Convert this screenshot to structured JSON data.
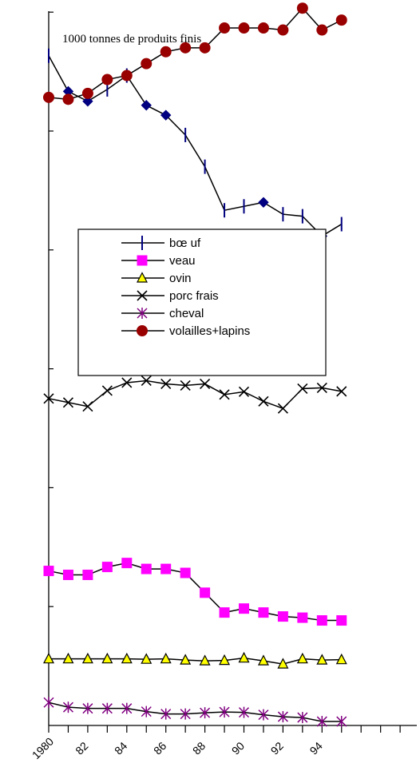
{
  "chart_data": {
    "type": "line",
    "title": "1000 tonnes de produits finis",
    "xlabel": "",
    "ylabel": "",
    "x": [
      1980,
      1981,
      1982,
      1983,
      1984,
      1985,
      1986,
      1987,
      1988,
      1989,
      1990,
      1991,
      1992,
      1993,
      1994,
      1995,
      1996
    ],
    "x_tick_labels": [
      "1980",
      "82",
      "84",
      "86",
      "88",
      "90",
      "92",
      "94"
    ],
    "y_tick_labels": [],
    "ylim": [
      0,
      1800
    ],
    "grid": false,
    "legend_position": "center",
    "series": [
      {
        "name": "bœ uf",
        "marker": "bar",
        "color": "#000080",
        "values": [
          1690,
          1600,
          1575,
          1605,
          1640,
          1565,
          1540,
          1490,
          1410,
          1300,
          1310,
          1320,
          1290,
          1285,
          1235,
          1265,
          null
        ]
      },
      {
        "name": "veau",
        "marker": "square",
        "color": "#ff00ff",
        "values": [
          390,
          380,
          380,
          400,
          410,
          395,
          395,
          385,
          335,
          285,
          295,
          285,
          275,
          272,
          265,
          265,
          null
        ]
      },
      {
        "name": "ovin",
        "marker": "triangle",
        "color": "#ffff00",
        "values": [
          168,
          168,
          168,
          168,
          168,
          167,
          168,
          165,
          163,
          164,
          170,
          163,
          155,
          168,
          165,
          166,
          null
        ]
      },
      {
        "name": "porc frais",
        "marker": "x",
        "color": "#000000",
        "values": [
          825,
          815,
          805,
          845,
          865,
          870,
          862,
          858,
          862,
          835,
          842,
          818,
          800,
          850,
          852,
          843,
          null
        ]
      },
      {
        "name": "cheval",
        "marker": "star",
        "color": "#800080",
        "values": [
          58,
          46,
          43,
          43,
          43,
          35,
          29,
          29,
          32,
          34,
          33,
          27,
          22,
          20,
          10,
          10,
          null
        ]
      },
      {
        "name": "volailles+lapins",
        "marker": "circle",
        "color": "#990000",
        "values": [
          1585,
          1580,
          1595,
          1630,
          1640,
          1670,
          1700,
          1710,
          1710,
          1760,
          1760,
          1760,
          1755,
          1810,
          1755,
          1780,
          null
        ]
      }
    ]
  }
}
